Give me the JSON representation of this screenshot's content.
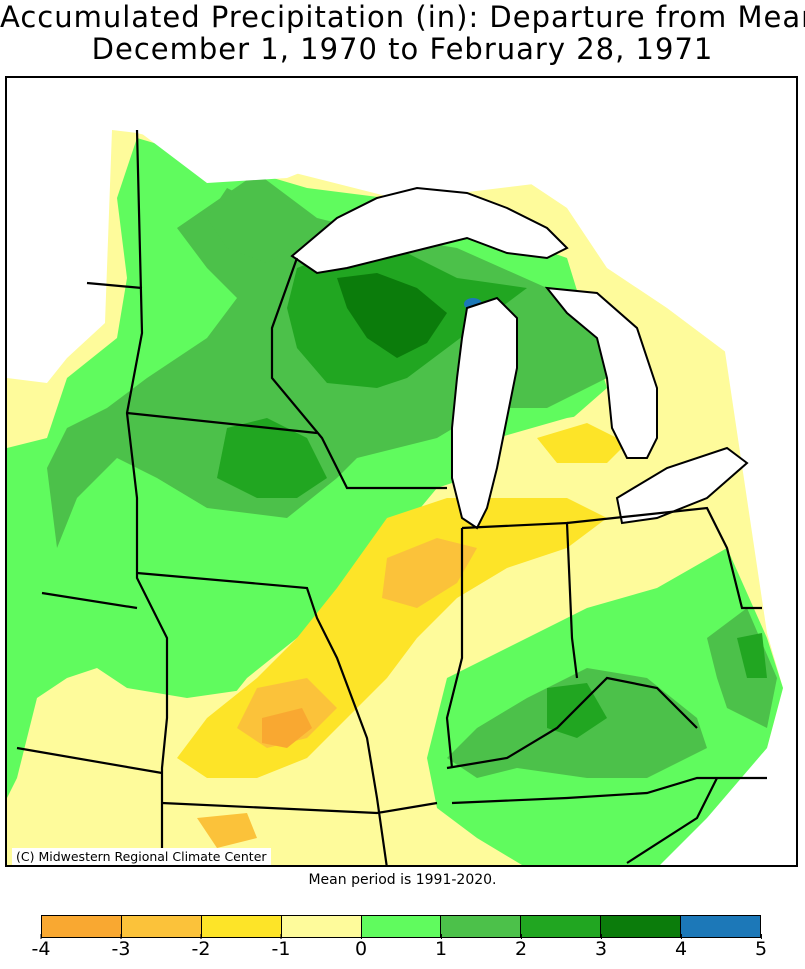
{
  "title_line1": "Accumulated Precipitation (in): Departure from Mean",
  "title_line2": "December 1, 1970 to February 28, 1971",
  "credit": "(C) Midwestern Regional Climate Center",
  "mean_note": "Mean period is 1991-2020.",
  "legend": {
    "ticks": [
      "-4",
      "-3",
      "-2",
      "-1",
      "0",
      "1",
      "2",
      "3",
      "4",
      "5"
    ],
    "colors": [
      "#f9a831",
      "#fbc23a",
      "#fde428",
      "#fefb9b",
      "#60fb5e",
      "#4cc14a",
      "#21a621",
      "#0b7c0b",
      "#1c78b8"
    ]
  },
  "colors": {
    "lake": "#ffffff",
    "border": "#000000"
  }
}
